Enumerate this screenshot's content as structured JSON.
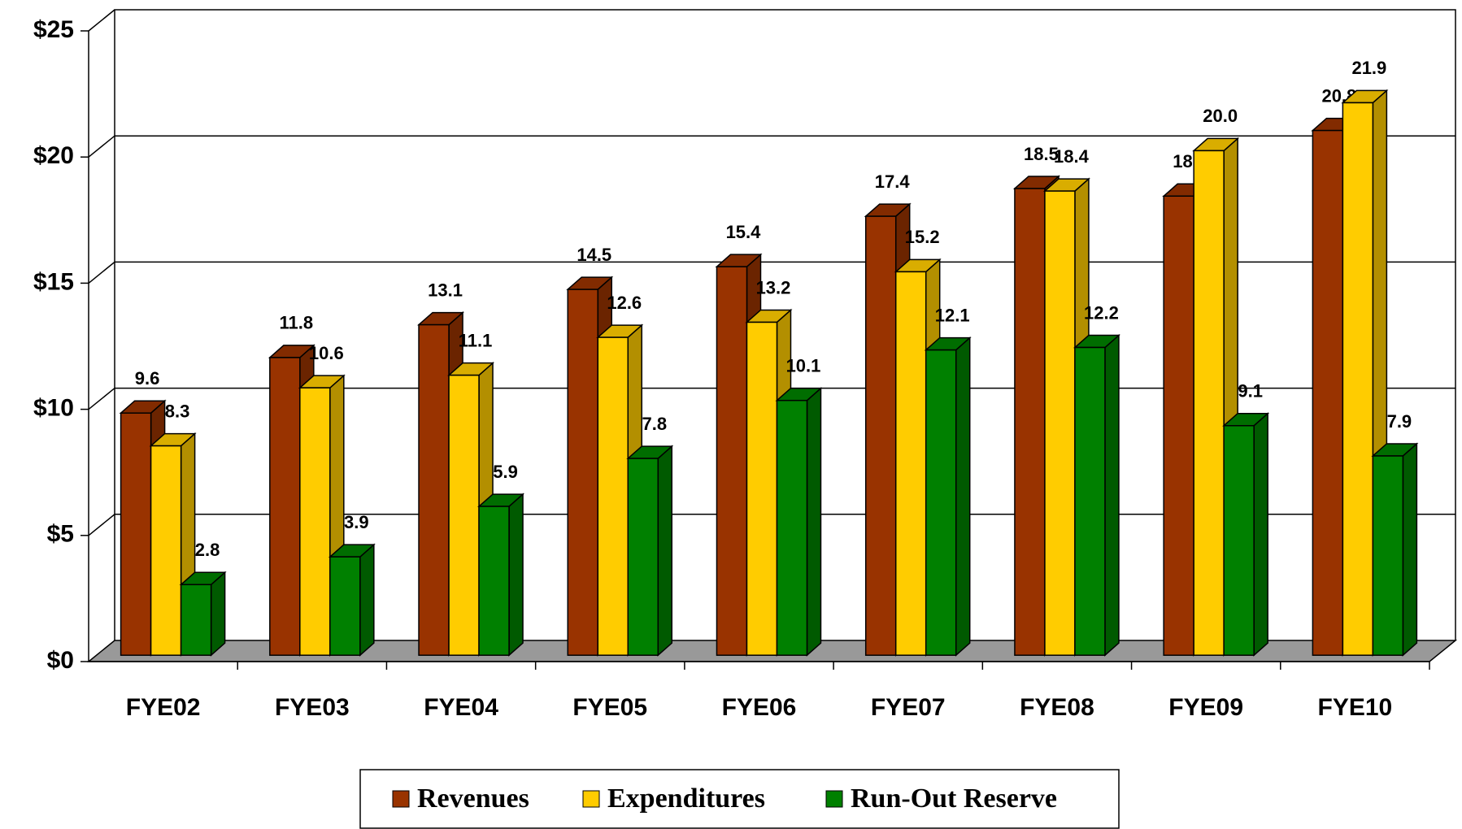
{
  "chart_data": {
    "type": "bar3d",
    "categories": [
      "FYE02",
      "FYE03",
      "FYE04",
      "FYE05",
      "FYE06",
      "FYE07",
      "FYE08",
      "FYE09",
      "FYE10"
    ],
    "series": [
      {
        "name": "Revenues",
        "color": "#993300",
        "values": [
          9.6,
          11.8,
          13.1,
          14.5,
          15.4,
          17.4,
          18.5,
          18.2,
          20.8
        ],
        "value_labels": [
          "9.6",
          "11.8",
          "13.1",
          "14.5",
          "15.4",
          "17.4",
          "18.5",
          "18.2",
          "20.8"
        ]
      },
      {
        "name": "Expenditures",
        "color": "#ffcc00",
        "values": [
          8.3,
          10.6,
          11.1,
          12.6,
          13.2,
          15.2,
          18.4,
          20.0,
          21.9
        ],
        "value_labels": [
          "8.3",
          "10.6",
          "11.1",
          "12.6",
          "13.2",
          "15.2",
          "18.4",
          "20.0",
          "21.9"
        ]
      },
      {
        "name": "Run-Out Reserve",
        "color": "#008000",
        "values": [
          2.8,
          3.9,
          5.9,
          7.8,
          10.1,
          12.1,
          12.2,
          9.1,
          7.9
        ],
        "value_labels": [
          "2.8",
          "3.9",
          "5.9",
          "7.8",
          "10.1",
          "12.1",
          "12.2",
          "9.1",
          "7.9"
        ]
      }
    ],
    "ylim": [
      0,
      25
    ],
    "yticks": [
      {
        "value": 0,
        "label": "$0"
      },
      {
        "value": 5,
        "label": "$5"
      },
      {
        "value": 10,
        "label": "$10"
      },
      {
        "value": 15,
        "label": "$15"
      },
      {
        "value": 20,
        "label": "$20"
      },
      {
        "value": 25,
        "label": "$25"
      }
    ],
    "grid": true,
    "legend": "bottom"
  }
}
